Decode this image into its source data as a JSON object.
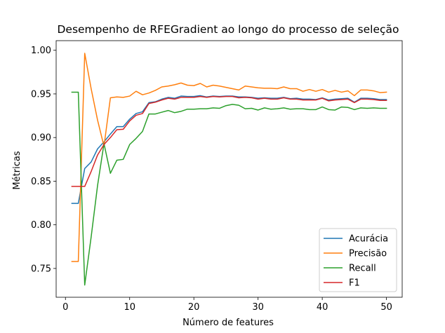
{
  "chart_data": {
    "type": "line",
    "title": "Desempenho de RFEGradient ao longo do processo de seleção",
    "xlabel": "Número de features",
    "ylabel": "Métricas",
    "xlim": [
      -1.45,
      52.45
    ],
    "ylim": [
      0.717,
      1.011
    ],
    "xticks": [
      0,
      10,
      20,
      30,
      40,
      50
    ],
    "xtick_labels": [
      "0",
      "10",
      "20",
      "30",
      "40",
      "50"
    ],
    "yticks": [
      0.75,
      0.8,
      0.85,
      0.9,
      0.95,
      1.0
    ],
    "ytick_labels": [
      "0.75",
      "0.80",
      "0.85",
      "0.90",
      "0.95",
      "1.00"
    ],
    "grid": false,
    "legend_position": "lower-right",
    "x": [
      1,
      2,
      3,
      4,
      5,
      6,
      7,
      8,
      9,
      10,
      11,
      12,
      13,
      14,
      15,
      16,
      17,
      18,
      19,
      20,
      21,
      22,
      23,
      24,
      25,
      26,
      27,
      28,
      29,
      30,
      31,
      32,
      33,
      34,
      35,
      36,
      37,
      38,
      39,
      40,
      41,
      42,
      43,
      44,
      45,
      46,
      47,
      48,
      49,
      50
    ],
    "series": [
      {
        "name": "Acurácia",
        "color": "#1f77b4",
        "values": [
          0.8245,
          0.8245,
          0.8645,
          0.872,
          0.887,
          0.895,
          0.904,
          0.9125,
          0.9125,
          0.921,
          0.9275,
          0.9295,
          0.94,
          0.941,
          0.944,
          0.946,
          0.945,
          0.9475,
          0.947,
          0.947,
          0.948,
          0.9465,
          0.9475,
          0.947,
          0.9475,
          0.9475,
          0.9465,
          0.9465,
          0.946,
          0.945,
          0.9455,
          0.945,
          0.945,
          0.946,
          0.9445,
          0.945,
          0.944,
          0.944,
          0.9435,
          0.9455,
          0.943,
          0.944,
          0.9445,
          0.945,
          0.9405,
          0.945,
          0.945,
          0.9445,
          0.9435,
          0.9435
        ]
      },
      {
        "name": "Precisão",
        "color": "#ff7f0e",
        "values": [
          0.758,
          0.758,
          0.9965,
          0.956,
          0.92,
          0.89,
          0.9455,
          0.9465,
          0.946,
          0.9475,
          0.953,
          0.949,
          0.951,
          0.954,
          0.958,
          0.959,
          0.9605,
          0.9625,
          0.96,
          0.9595,
          0.962,
          0.958,
          0.96,
          0.959,
          0.9575,
          0.956,
          0.9545,
          0.959,
          0.958,
          0.957,
          0.9565,
          0.9565,
          0.956,
          0.958,
          0.956,
          0.956,
          0.953,
          0.955,
          0.953,
          0.955,
          0.952,
          0.954,
          0.952,
          0.9535,
          0.948,
          0.9545,
          0.9545,
          0.9535,
          0.9515,
          0.952
        ]
      },
      {
        "name": "Recall",
        "color": "#2ca02c",
        "values": [
          0.952,
          0.952,
          0.731,
          0.786,
          0.845,
          0.893,
          0.859,
          0.874,
          0.875,
          0.892,
          0.899,
          0.907,
          0.927,
          0.927,
          0.929,
          0.931,
          0.9285,
          0.93,
          0.9325,
          0.9325,
          0.933,
          0.933,
          0.934,
          0.9335,
          0.9365,
          0.938,
          0.937,
          0.933,
          0.9335,
          0.9315,
          0.934,
          0.9325,
          0.933,
          0.934,
          0.9325,
          0.933,
          0.933,
          0.932,
          0.932,
          0.935,
          0.932,
          0.9315,
          0.935,
          0.9345,
          0.932,
          0.934,
          0.9335,
          0.934,
          0.9335,
          0.9335
        ]
      },
      {
        "name": "F1",
        "color": "#d62728",
        "values": [
          0.844,
          0.844,
          0.844,
          0.861,
          0.88,
          0.892,
          0.9,
          0.909,
          0.9095,
          0.919,
          0.9255,
          0.9275,
          0.939,
          0.9405,
          0.943,
          0.945,
          0.944,
          0.946,
          0.946,
          0.946,
          0.947,
          0.946,
          0.947,
          0.9465,
          0.947,
          0.947,
          0.9455,
          0.946,
          0.9455,
          0.944,
          0.945,
          0.944,
          0.944,
          0.9455,
          0.944,
          0.944,
          0.943,
          0.943,
          0.943,
          0.945,
          0.942,
          0.943,
          0.9435,
          0.944,
          0.94,
          0.944,
          0.944,
          0.9435,
          0.9425,
          0.9425
        ]
      }
    ]
  }
}
